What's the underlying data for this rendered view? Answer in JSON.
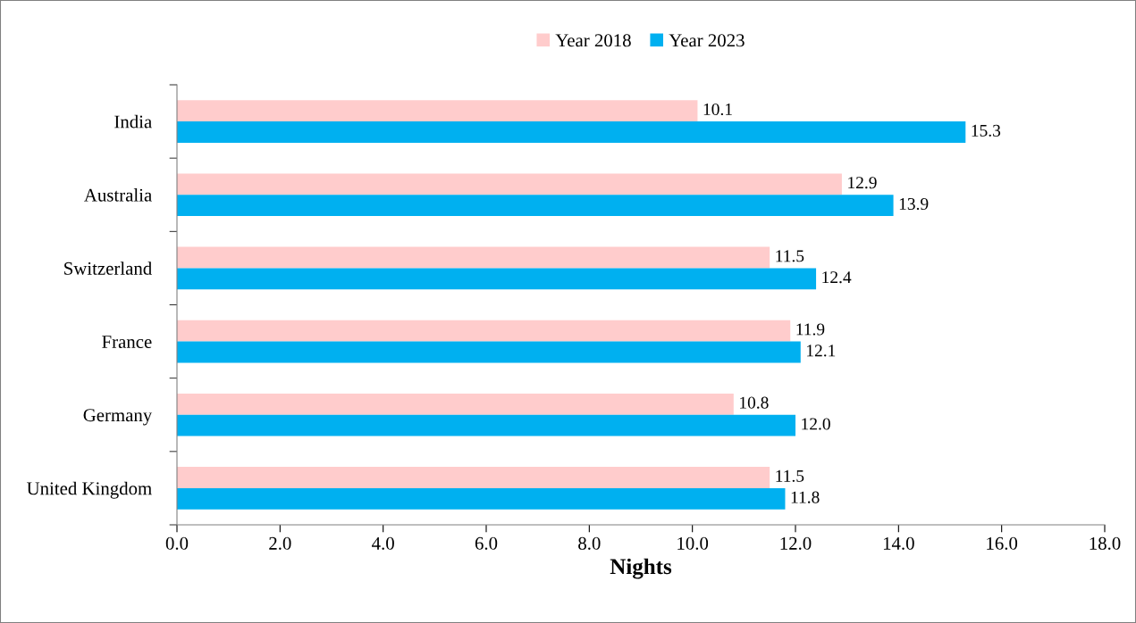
{
  "chart_data": {
    "type": "bar",
    "orientation": "horizontal",
    "xlabel": "Nights",
    "categories": [
      "India",
      "Australia",
      "Switzerland",
      "France",
      "Germany",
      "United Kingdom"
    ],
    "series": [
      {
        "name": "Year 2018",
        "color": "#ffcccc",
        "values": [
          10.1,
          12.9,
          11.5,
          11.9,
          10.8,
          11.5
        ],
        "value_labels": [
          "10.1",
          "12.9",
          "11.5",
          "11.9",
          "10.8",
          "11.5"
        ]
      },
      {
        "name": "Year 2023",
        "color": "#00b0f0",
        "values": [
          15.3,
          13.9,
          12.4,
          12.1,
          12.0,
          11.8
        ],
        "value_labels": [
          "15.3",
          "13.9",
          "12.4",
          "12.1",
          "12.0",
          "11.8"
        ]
      }
    ],
    "xlim": [
      0,
      18
    ],
    "xticks": [
      {
        "value": 0,
        "label": "0.0"
      },
      {
        "value": 2,
        "label": "2.0"
      },
      {
        "value": 4,
        "label": "4.0"
      },
      {
        "value": 6,
        "label": "6.0"
      },
      {
        "value": 8,
        "label": "8.0"
      },
      {
        "value": 10,
        "label": "10.0"
      },
      {
        "value": 12,
        "label": "12.0"
      },
      {
        "value": 14,
        "label": "14.0"
      },
      {
        "value": 16,
        "label": "16.0"
      },
      {
        "value": 18,
        "label": "18.0"
      }
    ],
    "legend": "top",
    "grid": false
  }
}
